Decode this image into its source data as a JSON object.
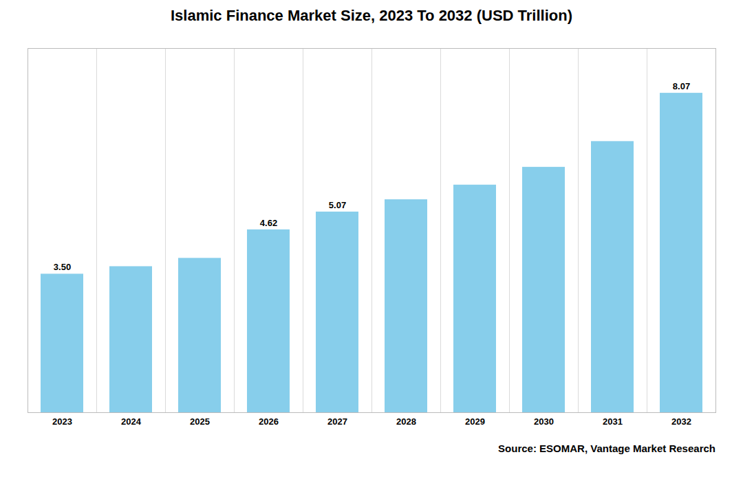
{
  "chart_data": {
    "type": "bar",
    "title": "Islamic Finance Market Size, 2023 To 2032 (USD Trillion)",
    "categories": [
      "2023",
      "2024",
      "2025",
      "2026",
      "2027",
      "2028",
      "2029",
      "2030",
      "2031",
      "2032"
    ],
    "values": [
      3.5,
      3.69,
      3.9,
      4.62,
      5.07,
      5.38,
      5.75,
      6.2,
      6.85,
      8.07
    ],
    "value_labels": [
      "3.50",
      null,
      null,
      "4.62",
      "5.07",
      null,
      null,
      null,
      null,
      "8.07"
    ],
    "data_labels": true,
    "color": "#87CEEB",
    "ylim": [
      0,
      9.2
    ],
    "tick_labels": "x",
    "grid": true,
    "annotations": [
      "Source: ESOMAR, Vantage Market Research"
    ]
  }
}
